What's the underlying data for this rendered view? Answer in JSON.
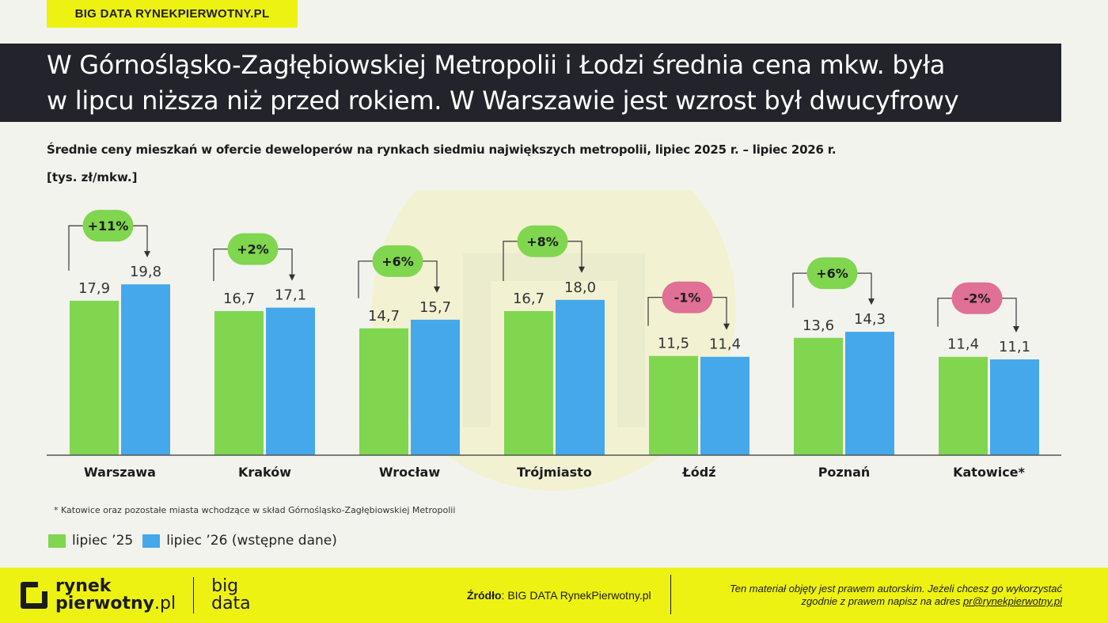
{
  "tag": "BIG DATA RYNEKPIERWOTNY.PL",
  "headline": {
    "line1": "W Górnośląsko-Zagłębiowskiej Metropolii i Łodzi średnia cena mkw. była",
    "line2": "w lipcu niższa niż przed rokiem. W Warszawie jest wzrost był dwucyfrowy"
  },
  "subtitle": "Średnie ceny mieszkań w ofercie deweloperów na rynkach siedmiu największych metropolii, lipiec 2025 r. – lipiec 2026 r.",
  "unit": "[tys. zł/mkw.]",
  "colors": {
    "green": "#80d64f",
    "blue": "#45a8ea",
    "badge_up": "#80d64f",
    "badge_down": "#e07095",
    "yellow": "#eef212",
    "dark": "#23242b"
  },
  "chart_data": {
    "type": "bar",
    "categories": [
      "Warszawa",
      "Kraków",
      "Wrocław",
      "Trójmiasto",
      "Łódź",
      "Poznań",
      "Katowice*"
    ],
    "series": [
      {
        "name": "lipiec ’25",
        "values": [
          17.9,
          16.7,
          14.7,
          16.7,
          11.5,
          13.6,
          11.4
        ],
        "labels": [
          "17,9",
          "16,7",
          "14,7",
          "16,7",
          "11,5",
          "13,6",
          "11,4"
        ]
      },
      {
        "name": "lipiec ’26 (wstępne dane)",
        "values": [
          19.8,
          17.1,
          15.7,
          18.0,
          11.4,
          14.3,
          11.1
        ],
        "labels": [
          "19,8",
          "17,1",
          "15,7",
          "18,0",
          "11,4",
          "14,3",
          "11,1"
        ]
      }
    ],
    "changes": [
      "+11%",
      "+2%",
      "+6%",
      "+8%",
      "-1%",
      "+6%",
      "-2%"
    ],
    "ylim": [
      0,
      22
    ],
    "grid": false
  },
  "footnote": "* Katowice oraz pozostałe miasta wchodzące w skład Górnośląsko-Zagłębiowskiej Metropolii",
  "legend": {
    "a": "lipiec ’25",
    "b": "lipiec ’26 (wstępne dane)"
  },
  "footer": {
    "logo_line1": "rynek",
    "logo_line2": "pierwotny",
    "logo_suffix": ".pl",
    "bd_line1": "big",
    "bd_line2": "data",
    "source_label": "Źródło",
    "source_text": ": BIG DATA RynekPierwotny.pl",
    "copy_line1": "Ten materiał objęty jest prawem autorskim. Jeżeli chcesz go wykorzystać",
    "copy_line2": "zgodnie z prawem napisz na adres ",
    "copy_email": "pr@rynekpierwotny.pl"
  }
}
